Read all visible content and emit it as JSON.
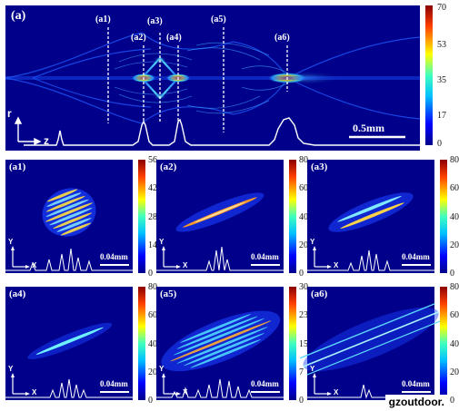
{
  "figure": {
    "main": {
      "label": "(a)",
      "sections": [
        "(a1)",
        "(a2)",
        "(a3)",
        "(a4)",
        "(a5)",
        "(a6)"
      ],
      "scale_bar": "0.5mm",
      "axis_r": "r",
      "axis_z": "z",
      "colorbar_ticks": [
        "70",
        "53",
        "35",
        "17",
        "0"
      ]
    },
    "subpanels": [
      {
        "label": "(a1)",
        "scale": "0.04mm",
        "ticks": [
          "56",
          "42",
          "28",
          "14",
          "0"
        ],
        "pattern": "fringe-ellipse"
      },
      {
        "label": "(a2)",
        "scale": "0.04mm",
        "ticks": [
          "80",
          "60",
          "40",
          "20",
          "0"
        ],
        "pattern": "thin-streak"
      },
      {
        "label": "(a3)",
        "scale": "0.04mm",
        "ticks": [
          "80",
          "60",
          "40",
          "20",
          "0"
        ],
        "pattern": "double-streak"
      },
      {
        "label": "(a4)",
        "scale": "0.04mm",
        "ticks": [
          "80",
          "60",
          "40",
          "20",
          "0"
        ],
        "pattern": "single-streak"
      },
      {
        "label": "(a5)",
        "scale": "0.04mm",
        "ticks": [
          "30",
          "23",
          "15",
          "7",
          "0"
        ],
        "pattern": "wide-band"
      },
      {
        "label": "(a6)",
        "scale": "0.04mm",
        "ticks": [
          "80",
          "60",
          "40",
          "20",
          "0"
        ],
        "pattern": "long-streaks"
      }
    ],
    "axis_y": "Y",
    "axis_x": "X",
    "watermark": "gzoutdoor."
  }
}
